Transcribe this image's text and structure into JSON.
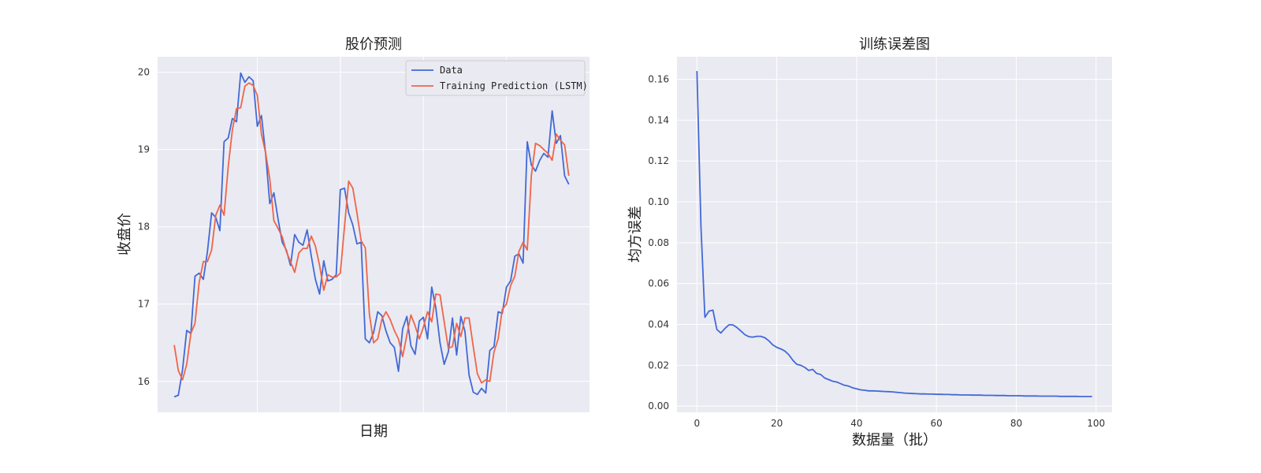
{
  "chart_data": [
    {
      "type": "line",
      "title": "股价预测",
      "xlabel": "日期",
      "ylabel": "收盘价",
      "ylim": [
        15.6,
        20.2
      ],
      "yticks": [
        16,
        17,
        18,
        19,
        20
      ],
      "xlim": [
        -4,
        100
      ],
      "xticks": [
        20,
        40,
        60,
        80
      ],
      "xtick_labels_visible": false,
      "grid": true,
      "legend": "top-right",
      "series": [
        {
          "name": "Data",
          "color": "#4169d6",
          "values": [
            15.8,
            15.82,
            16.15,
            16.66,
            16.62,
            17.36,
            17.4,
            17.32,
            17.68,
            18.18,
            18.12,
            17.95,
            19.1,
            19.15,
            19.4,
            19.36,
            19.99,
            19.87,
            19.94,
            19.89,
            19.3,
            19.44,
            18.95,
            18.3,
            18.44,
            18.1,
            17.8,
            17.7,
            17.5,
            17.9,
            17.8,
            17.76,
            17.96,
            17.62,
            17.32,
            17.13,
            17.56,
            17.3,
            17.32,
            17.38,
            18.48,
            18.5,
            18.18,
            18.02,
            17.78,
            17.8,
            16.55,
            16.5,
            16.63,
            16.9,
            16.85,
            16.65,
            16.5,
            16.44,
            16.13,
            16.68,
            16.84,
            16.46,
            16.35,
            16.78,
            16.83,
            16.55,
            17.22,
            16.95,
            16.5,
            16.22,
            16.38,
            16.82,
            16.34,
            16.84,
            16.65,
            16.08,
            15.86,
            15.83,
            15.91,
            15.85,
            16.4,
            16.45,
            16.9,
            16.88,
            17.22,
            17.3,
            17.62,
            17.65,
            17.53,
            19.1,
            18.8,
            18.72,
            18.86,
            18.95,
            18.9,
            19.5,
            19.08,
            19.18,
            18.66,
            18.55
          ]
        },
        {
          "name": "Training Prediction (LSTM)",
          "color": "#ef6548",
          "values": [
            16.47,
            16.14,
            16.02,
            16.22,
            16.62,
            16.75,
            17.28,
            17.55,
            17.55,
            17.7,
            18.15,
            18.28,
            18.15,
            18.78,
            19.25,
            19.53,
            19.54,
            19.82,
            19.86,
            19.83,
            19.7,
            19.2,
            18.96,
            18.62,
            18.08,
            17.98,
            17.87,
            17.68,
            17.55,
            17.41,
            17.66,
            17.72,
            17.72,
            17.88,
            17.75,
            17.5,
            17.18,
            17.38,
            17.35,
            17.35,
            17.4,
            18.0,
            18.59,
            18.5,
            18.18,
            17.82,
            17.73,
            16.87,
            16.5,
            16.55,
            16.8,
            16.9,
            16.8,
            16.66,
            16.55,
            16.32,
            16.6,
            16.86,
            16.72,
            16.55,
            16.7,
            16.9,
            16.77,
            17.13,
            17.12,
            16.77,
            16.43,
            16.45,
            16.75,
            16.58,
            16.82,
            16.82,
            16.45,
            16.1,
            15.98,
            16.02,
            16.0,
            16.38,
            16.55,
            16.93,
            17.0,
            17.24,
            17.36,
            17.68,
            17.8,
            17.7,
            18.66,
            19.08,
            19.05,
            19.0,
            18.95,
            18.86,
            19.2,
            19.12,
            19.06,
            18.66
          ]
        }
      ]
    },
    {
      "type": "line",
      "title": "训练误差图",
      "xlabel": "数据量（批）",
      "ylabel": "均方误差",
      "xlim": [
        -5,
        104
      ],
      "ylim": [
        -0.003,
        0.171
      ],
      "xticks": [
        0,
        20,
        40,
        60,
        80,
        100
      ],
      "yticks": [
        0.0,
        0.02,
        0.04,
        0.06,
        0.08,
        0.1,
        0.12,
        0.14,
        0.16
      ],
      "ytick_labels": [
        "0.00",
        "0.02",
        "0.04",
        "0.06",
        "0.08",
        "0.10",
        "0.12",
        "0.14",
        "0.16"
      ],
      "grid": true,
      "series": [
        {
          "color": "#4169d6",
          "values": [
            0.164,
            0.088,
            0.0435,
            0.0465,
            0.047,
            0.0375,
            0.0358,
            0.038,
            0.0398,
            0.0398,
            0.0385,
            0.0368,
            0.035,
            0.034,
            0.0338,
            0.0342,
            0.0342,
            0.0335,
            0.032,
            0.03,
            0.0288,
            0.028,
            0.027,
            0.0252,
            0.0225,
            0.0205,
            0.02,
            0.019,
            0.0175,
            0.018,
            0.016,
            0.0155,
            0.0138,
            0.013,
            0.0122,
            0.0118,
            0.011,
            0.0102,
            0.0098,
            0.009,
            0.0085,
            0.008,
            0.0078,
            0.0075,
            0.0075,
            0.0074,
            0.0073,
            0.0072,
            0.0071,
            0.007,
            0.0068,
            0.0066,
            0.0064,
            0.0063,
            0.0062,
            0.0061,
            0.006,
            0.006,
            0.0059,
            0.0059,
            0.0058,
            0.0058,
            0.0057,
            0.0057,
            0.0056,
            0.0056,
            0.0055,
            0.0055,
            0.0055,
            0.0054,
            0.0054,
            0.0054,
            0.0053,
            0.0053,
            0.0053,
            0.0052,
            0.0052,
            0.0052,
            0.0051,
            0.0051,
            0.0051,
            0.0051,
            0.005,
            0.005,
            0.005,
            0.005,
            0.0049,
            0.0049,
            0.0049,
            0.0049,
            0.0049,
            0.0048,
            0.0048,
            0.0048,
            0.0048,
            0.0048,
            0.0047,
            0.0047,
            0.0047,
            0.0047
          ]
        }
      ]
    }
  ]
}
